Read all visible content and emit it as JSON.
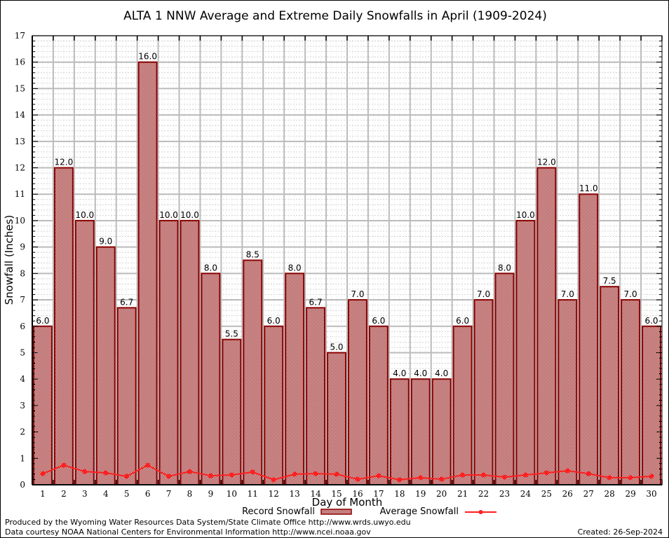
{
  "chart_data": {
    "type": "bar",
    "title": "ALTA 1 NNW Average and Extreme Daily Snowfalls in April (1909-2024)",
    "xlabel": "Day of Month",
    "ylabel": "Snowfall (Inches)",
    "ylim": [
      0,
      17
    ],
    "yticks": [
      0,
      1,
      2,
      3,
      4,
      5,
      6,
      7,
      8,
      9,
      10,
      11,
      12,
      13,
      14,
      15,
      16,
      17
    ],
    "grid": true,
    "legend_position": "bottom",
    "categories": [
      "1",
      "2",
      "3",
      "4",
      "5",
      "6",
      "7",
      "8",
      "9",
      "10",
      "11",
      "12",
      "13",
      "14",
      "15",
      "16",
      "17",
      "18",
      "19",
      "20",
      "21",
      "22",
      "23",
      "24",
      "25",
      "26",
      "27",
      "28",
      "29",
      "30"
    ],
    "series": [
      {
        "name": "Record Snowfall",
        "type": "bar",
        "color": "#8b0000",
        "values": [
          6.0,
          12.0,
          10.0,
          9.0,
          6.7,
          16.0,
          10.0,
          10.0,
          8.0,
          5.5,
          8.5,
          6.0,
          8.0,
          6.7,
          5.0,
          7.0,
          6.0,
          4.0,
          4.0,
          4.0,
          6.0,
          7.0,
          8.0,
          10.0,
          12.0,
          7.0,
          11.0,
          7.5,
          7.0,
          6.0
        ],
        "labels": [
          "6.0",
          "12.0",
          "10.0",
          "9.0",
          "6.7",
          "16.0",
          "10.0",
          "10.0",
          "8.0",
          "5.5",
          "8.5",
          "6.0",
          "8.0",
          "6.7",
          "5.0",
          "7.0",
          "6.0",
          "4.0",
          "4.0",
          "4.0",
          "6.0",
          "7.0",
          "8.0",
          "10.0",
          "12.0",
          "7.0",
          "11.0",
          "7.5",
          "7.0",
          "6.0"
        ]
      },
      {
        "name": "Average Snowfall",
        "type": "line",
        "color": "#ff2020",
        "values": [
          0.42,
          0.74,
          0.5,
          0.45,
          0.32,
          0.74,
          0.32,
          0.5,
          0.34,
          0.37,
          0.48,
          0.19,
          0.4,
          0.42,
          0.4,
          0.21,
          0.34,
          0.19,
          0.27,
          0.21,
          0.37,
          0.37,
          0.29,
          0.37,
          0.45,
          0.53,
          0.42,
          0.27,
          0.27,
          0.32
        ]
      }
    ]
  },
  "footer": {
    "line1": "Produced by the Wyoming Water Resources Data System/State Climate Office http://www.wrds.uwyo.edu",
    "line2": "Data courtesy NOAA National Centers for Environmental Information http://www.ncei.noaa.gov",
    "created": "Created:  26-Sep-2024"
  }
}
